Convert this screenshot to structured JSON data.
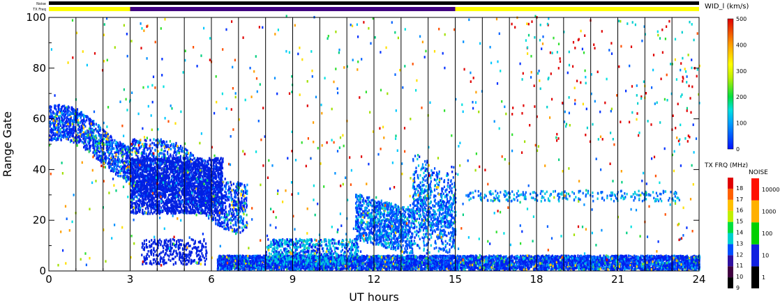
{
  "chart_data": {
    "type": "heatmap",
    "status_bars": {
      "noise_label": "Noise",
      "txfreq_label": "TX Freq",
      "txfreq_segments": [
        {
          "start": 0,
          "end": 3,
          "color": "#ffff00"
        },
        {
          "start": 3,
          "end": 15,
          "color": "#400080"
        },
        {
          "start": 15,
          "end": 24,
          "color": "#ffff00"
        }
      ]
    },
    "xlabel": "UT hours",
    "ylabel": "Range Gate",
    "xlim": [
      0,
      24
    ],
    "ylim": [
      0,
      100
    ],
    "x_ticks": [
      "0",
      "3",
      "6",
      "9",
      "12",
      "15",
      "18",
      "21",
      "24"
    ],
    "y_ticks": [
      "0",
      "20",
      "40",
      "60",
      "80",
      "100"
    ],
    "hour_lines": [
      1,
      2,
      3,
      4,
      5,
      6,
      7,
      8,
      9,
      10,
      11,
      12,
      13,
      14,
      15,
      16,
      17,
      18,
      19,
      20,
      21,
      22,
      23
    ],
    "colorbar": {
      "title": "WID_l (km/s)",
      "range": [
        0,
        500
      ],
      "ticks": [
        "0",
        "100",
        "200",
        "300",
        "400",
        "500"
      ]
    },
    "txfreq_legend": {
      "title": "TX FRQ (MHz)",
      "labels": [
        "9",
        "10",
        "11",
        "12",
        "13",
        "14",
        "15",
        "16",
        "17",
        "18"
      ],
      "colors": [
        "#000000",
        "#400040",
        "#3010a0",
        "#0050ff",
        "#00d0d0",
        "#00e040",
        "#c0f000",
        "#ffc000",
        "#ff6000",
        "#e00000"
      ]
    },
    "noise_legend": {
      "title": "NOISE",
      "labels": [
        "1",
        "10",
        "100",
        "1000",
        "10000"
      ],
      "colors": [
        "#000000",
        "#1020e0",
        "#00d000",
        "#ffb000",
        "#ff1000"
      ]
    },
    "scatter_regions": [
      {
        "desc": "early arc",
        "x": [
          0,
          7.3
        ],
        "y_from": [
          55,
          15
        ],
        "width": 12
      },
      {
        "desc": "near range band",
        "x": [
          6.2,
          24
        ],
        "y": [
          0,
          5
        ]
      },
      {
        "desc": "midday patches",
        "x": [
          11.3,
          15
        ],
        "y": [
          12,
          35
        ]
      },
      {
        "desc": "low patch",
        "x": [
          3.4,
          5.8
        ],
        "y": [
          2,
          12
        ]
      }
    ]
  }
}
